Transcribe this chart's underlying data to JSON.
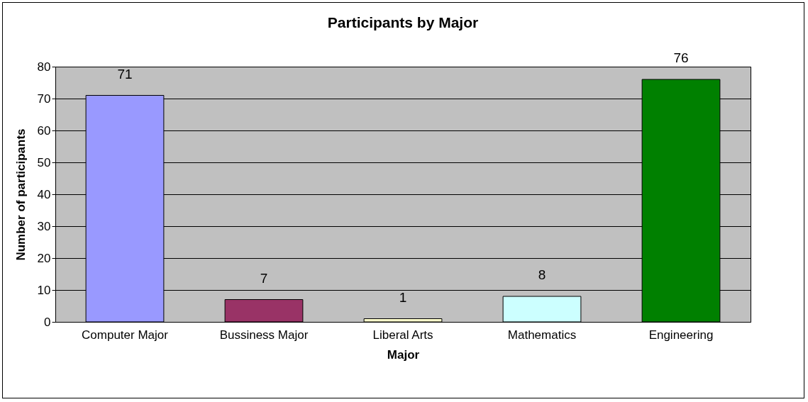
{
  "chart_data": {
    "type": "bar",
    "title": "Participants by Major",
    "xlabel": "Major",
    "ylabel": "Number of participants",
    "categories": [
      "Computer Major",
      "Bussiness Major",
      "Liberal Arts",
      "Mathematics",
      "Engineering"
    ],
    "values": [
      71,
      7,
      1,
      8,
      76
    ],
    "colors": [
      "#9999ff",
      "#993366",
      "#ffffcc",
      "#ccffff",
      "#008000"
    ],
    "ylim": [
      0,
      80
    ],
    "yticks": [
      0,
      10,
      20,
      30,
      40,
      50,
      60,
      70,
      80
    ],
    "grid": "y",
    "data_labels": true
  }
}
